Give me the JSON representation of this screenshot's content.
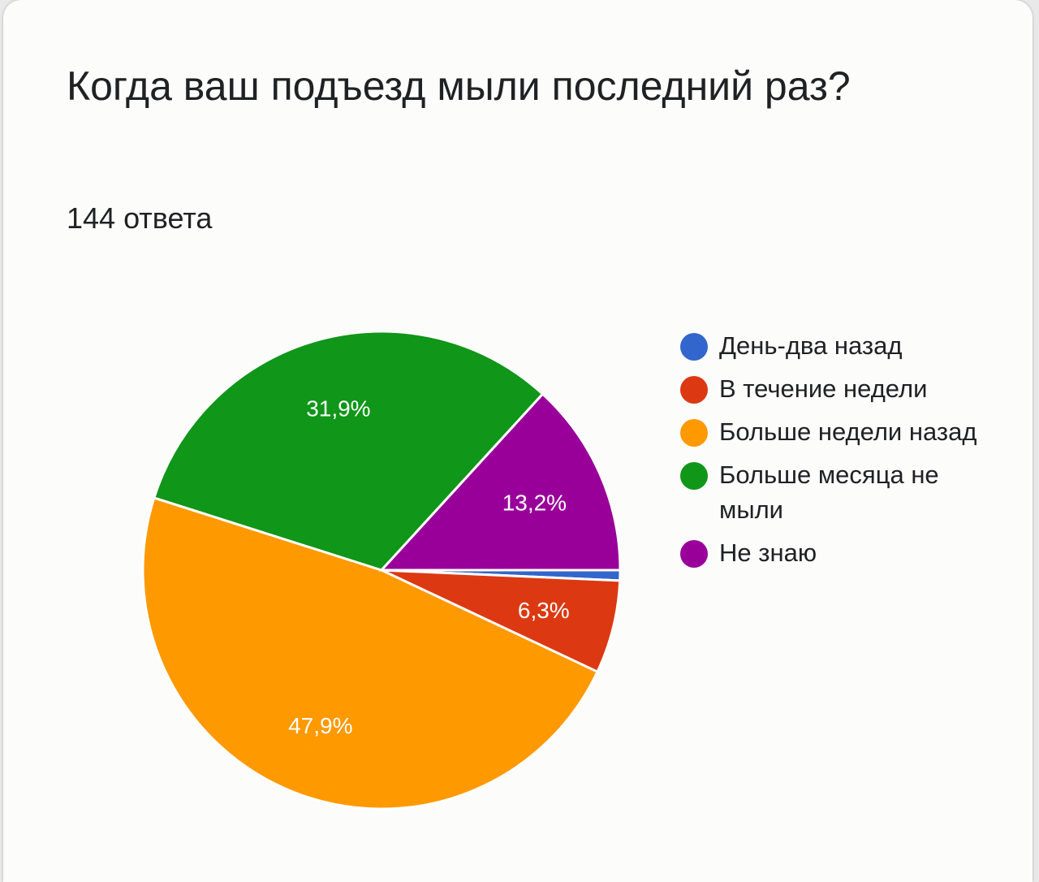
{
  "question": {
    "title": "Когда ваш подъезд мыли последний раз?",
    "responses": "144 ответа"
  },
  "chart_data": {
    "type": "pie",
    "categories": [
      "День-два назад",
      "В течение недели",
      "Больше недели назад",
      "Больше месяца не мыли",
      "Не знаю"
    ],
    "values": [
      0.7,
      6.3,
      47.9,
      31.9,
      13.2
    ],
    "data_labels": [
      "",
      "6,3%",
      "47,9%",
      "31,9%",
      "13,2%"
    ],
    "colors": [
      "#3366cc",
      "#dc3912",
      "#ff9900",
      "#109618",
      "#990099"
    ],
    "legend_position": "right",
    "start_angle": "3 o'clock, clockwise"
  }
}
